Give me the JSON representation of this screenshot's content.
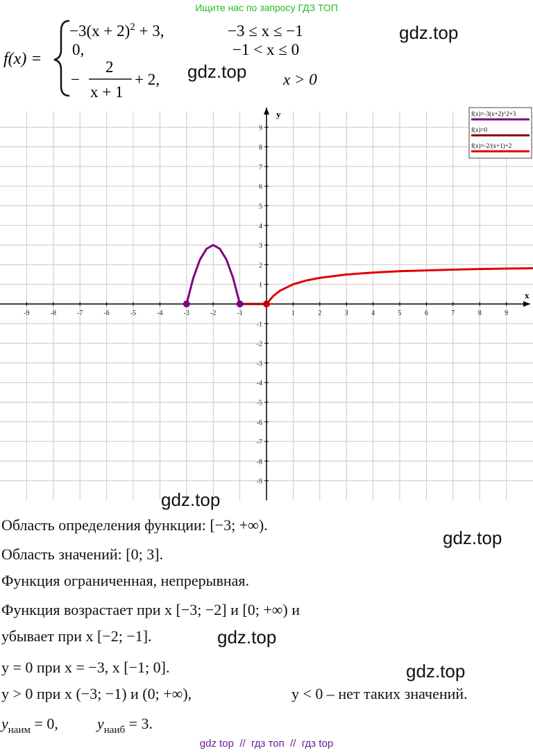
{
  "header": "Ищите нас по запросу ГДЗ ТОП",
  "formula": {
    "lhs": "f(x) =",
    "cases": [
      {
        "parts": [
          "−3(x + 2)",
          "2",
          " + 3,"
        ],
        "condition": "−3 ≤ x ≤ −1"
      },
      {
        "parts": [
          "0,"
        ],
        "condition": "−1 < x ≤ 0"
      },
      {
        "parts": [
          "−",
          "2",
          "x + 1",
          "+ 2,"
        ],
        "condition": "x > 0"
      }
    ]
  },
  "chart_data": {
    "type": "line",
    "x_label": "x",
    "y_label": "y",
    "xlim": [
      -10,
      10
    ],
    "ylim": [
      -10,
      10
    ],
    "xticks": [
      -9,
      -8,
      -7,
      -6,
      -5,
      -4,
      -3,
      -2,
      -1,
      1,
      2,
      3,
      4,
      5,
      6,
      7,
      8,
      9
    ],
    "yticks": [
      -9,
      -8,
      -7,
      -6,
      -5,
      -4,
      -3,
      -2,
      -1,
      1,
      2,
      3,
      4,
      5,
      6,
      7,
      8,
      9
    ],
    "grid": true,
    "legend": "top-right",
    "series": [
      {
        "name": "f(x)=-3(x+2)^2+3",
        "color": "#800080",
        "x": [
          -3,
          -2.75,
          -2.5,
          -2.25,
          -2,
          -1.75,
          -1.5,
          -1.25,
          -1
        ],
        "values": [
          0,
          1.31,
          2.25,
          2.81,
          3,
          2.81,
          2.25,
          1.31,
          0
        ]
      },
      {
        "name": "f(x)=0",
        "color": "#8b0000",
        "x": [
          -1,
          0
        ],
        "values": [
          0,
          0
        ]
      },
      {
        "name": "f(x)=-2/(x+1)+2",
        "color": "#e00000",
        "x": [
          0,
          0.25,
          0.5,
          1,
          1.5,
          2,
          3,
          4,
          5,
          6,
          7,
          8,
          9,
          10
        ],
        "values": [
          0,
          0.4,
          0.67,
          1,
          1.2,
          1.33,
          1.5,
          1.6,
          1.67,
          1.71,
          1.75,
          1.78,
          1.8,
          1.82
        ]
      }
    ],
    "points": {
      "x": [
        -3,
        -1,
        0
      ],
      "values": [
        0,
        0,
        0
      ],
      "colors": [
        "#800080",
        "#800080",
        "#cc0000"
      ]
    }
  },
  "lines": [
    [
      "Область определения функции: [−3; +∞)."
    ],
    [
      "Область значений: [0; 3]."
    ],
    [
      "Функция ограниченная, непрерывная."
    ],
    [
      "Функция возрастает при x [−3; −2] и [0; +∞) и"
    ],
    [
      "убывает при x [−2; −1]."
    ],
    [
      "y = 0 при x = −3, x [−1; 0]."
    ],
    [
      "y > 0 при x (−3; −1) и (0; +∞),",
      "y < 0 – нет таких значений."
    ],
    [
      "y",
      "наим",
      " = 0,",
      "y",
      "наиб",
      " = 3."
    ]
  ],
  "watermarks": [
    "gdz.top",
    "gdz.top",
    "gdz.top",
    "gdz.top",
    "gdz.top",
    "gdz.top"
  ],
  "footer": "gdz top  //  гдз топ  //  гдз top"
}
